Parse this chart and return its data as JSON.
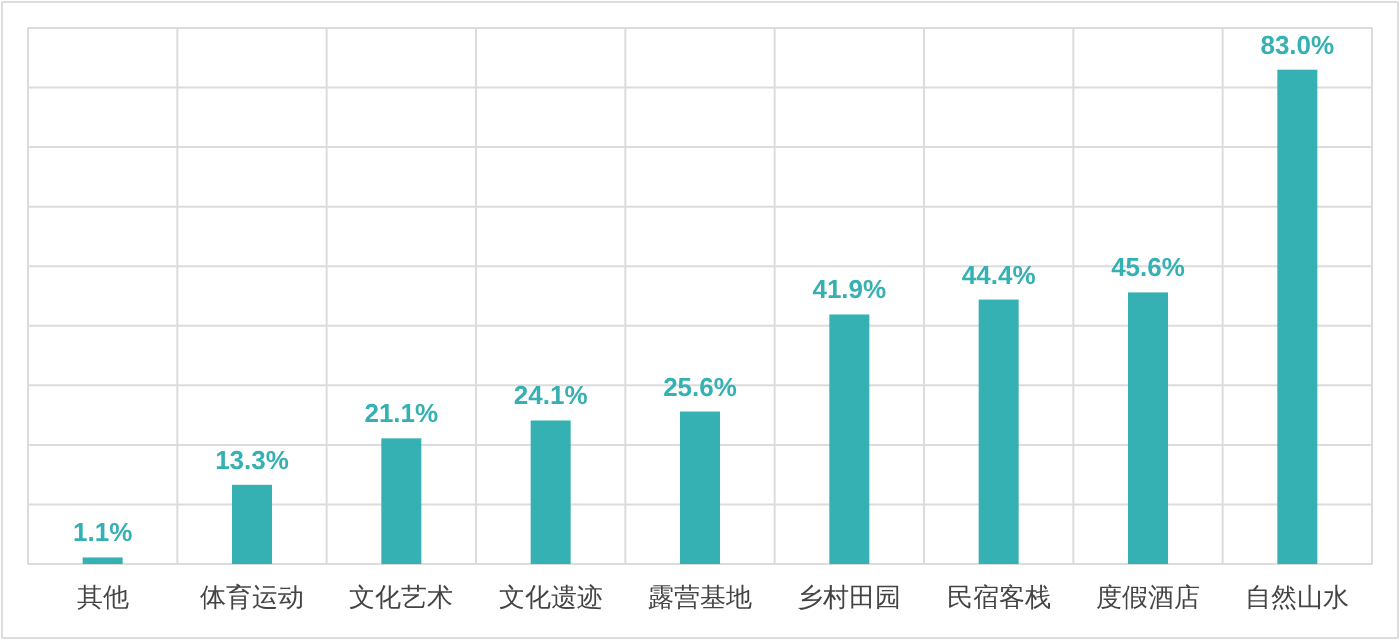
{
  "chart_data": {
    "type": "bar",
    "categories": [
      "其他",
      "体育运动",
      "文化艺术",
      "文化遗迹",
      "露营基地",
      "乡村田园",
      "民宿客栈",
      "度假酒店",
      "自然山水"
    ],
    "values": [
      1.1,
      13.3,
      21.1,
      24.1,
      25.6,
      41.9,
      44.4,
      45.6,
      83.0
    ],
    "value_labels": [
      "1.1%",
      "13.3%",
      "21.1%",
      "24.1%",
      "25.6%",
      "41.9%",
      "44.4%",
      "45.6%",
      "83.0%"
    ],
    "color": "#35b1b3",
    "ylim": [
      0,
      90
    ],
    "yticks": [
      {
        "value": 0,
        "label": null
      },
      {
        "value": 10,
        "label": null
      },
      {
        "value": 20,
        "label": null
      },
      {
        "value": 30,
        "label": null
      },
      {
        "value": 40,
        "label": null
      },
      {
        "value": 50,
        "label": null
      },
      {
        "value": 60,
        "label": null
      },
      {
        "value": 70,
        "label": null
      },
      {
        "value": 80,
        "label": null
      },
      {
        "value": 90,
        "label": null
      }
    ],
    "grid": true,
    "tick_labels": "x"
  }
}
